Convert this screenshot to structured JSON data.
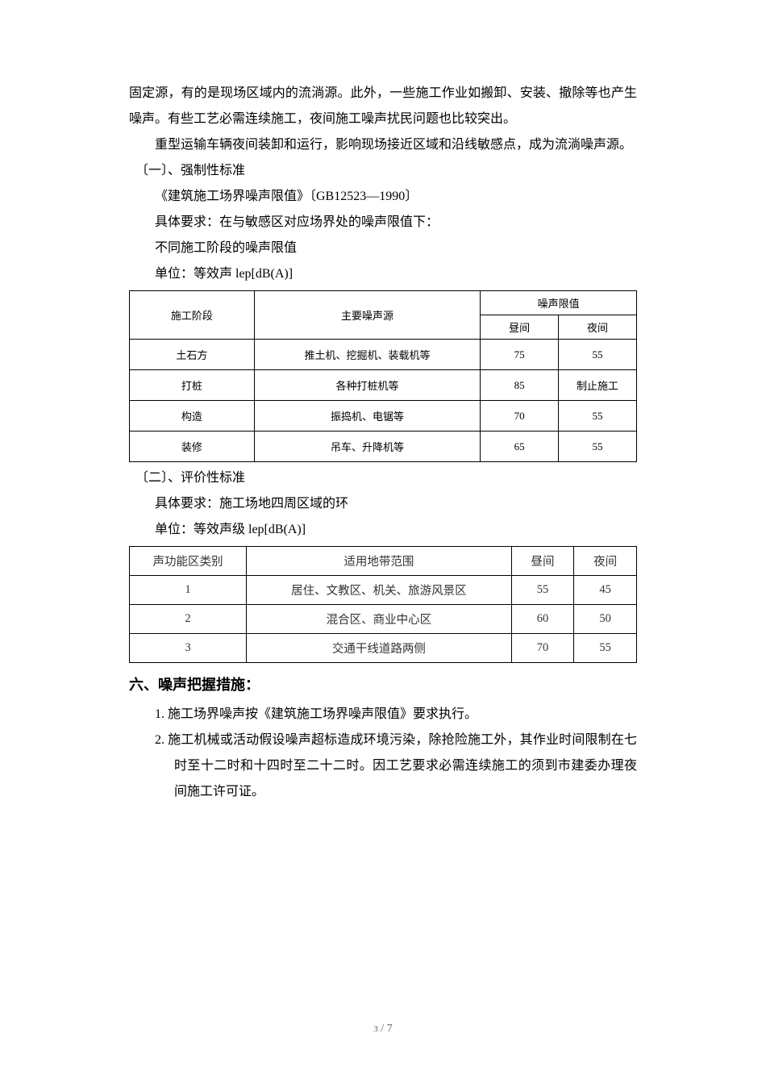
{
  "para1": "固定源，有的是现场区域内的流淌源。此外，一些施工作业如搬卸、安装、撤除等也产生噪声。有些工艺必需连续施工，夜间施工噪声扰民问题也比较突出。",
  "para2": "重型运输车辆夜间装卸和运行，影响现场接近区域和沿线敏感点，成为流淌噪声源。",
  "section1": "〔一〕、强制性标准",
  "sub1": "《建筑施工场界噪声限值》〔GB12523—1990〕",
  "sub2": "具体要求：在与敏感区对应场界处的噪声限值下：",
  "sub3": "不同施工阶段的噪声限值",
  "sub4": "单位：等效声 lep[dB(A)]",
  "table1": {
    "headers": {
      "stage": "施工阶段",
      "source": "主要噪声源",
      "limit": "噪声限值",
      "day": "昼间",
      "night": "夜间"
    },
    "rows": [
      {
        "stage": "土石方",
        "source": "推土机、挖掘机、装载机等",
        "day": "75",
        "night": "55"
      },
      {
        "stage": "打桩",
        "source": "各种打桩机等",
        "day": "85",
        "night": "制止施工"
      },
      {
        "stage": "构造",
        "source": "振捣机、电锯等",
        "day": "70",
        "night": "55"
      },
      {
        "stage": "装修",
        "source": "吊车、升降机等",
        "day": "65",
        "night": "55"
      }
    ]
  },
  "section2": "〔二〕、评价性标准",
  "sub5": "具体要求：施工场地四周区域的环",
  "sub6": "单位：等效声级 lep[dB(A)]",
  "table2": {
    "headers": {
      "cat": "声功能区类别",
      "scope": "适用地带范围",
      "day": "昼间",
      "night": "夜间"
    },
    "rows": [
      {
        "cat": "1",
        "scope": "居住、文教区、机关、旅游风景区",
        "day": "55",
        "night": "45"
      },
      {
        "cat": "2",
        "scope": "混合区、商业中心区",
        "day": "60",
        "night": "50"
      },
      {
        "cat": "3",
        "scope": "交通干线道路两侧",
        "day": "70",
        "night": "55"
      }
    ]
  },
  "heading6": "六、噪声把握措施：",
  "item1": "1.  施工场界噪声按《建筑施工场界噪声限值》要求执行。",
  "item2": "2.  施工机械或活动假设噪声超标造成环境污染，除抢险施工外，其作业时间限制在七时至十二时和十四时至二十二时。因工艺要求必需连续施工的须到市建委办理夜间施工许可证。",
  "pageNumber": {
    "current": "3",
    "sep": " / ",
    "total": "7"
  }
}
